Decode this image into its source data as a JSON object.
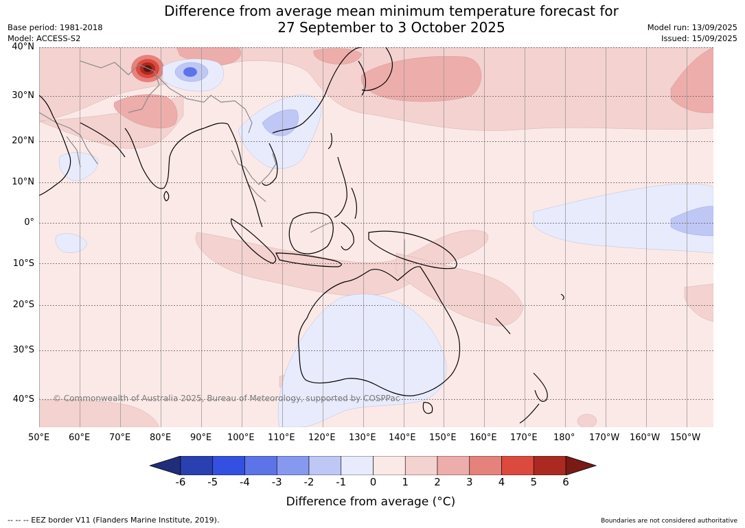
{
  "title": {
    "line1": "Difference from average mean minimum temperature forecast for",
    "line2": "27 September to 3 October 2025"
  },
  "meta_left": {
    "base_period": "Base period: 1981-2018",
    "model": "Model: ACCESS-S2"
  },
  "meta_right": {
    "model_run": "Model run: 13/09/2025",
    "issued": "Issued: 15/09/2025"
  },
  "map": {
    "latitude_labels": [
      "40°N",
      "30°N",
      "20°N",
      "10°N",
      "0°",
      "10°S",
      "20°S",
      "30°S",
      "40°S"
    ],
    "longitude_labels": [
      "50°E",
      "60°E",
      "70°E",
      "80°E",
      "90°E",
      "100°E",
      "110°E",
      "120°E",
      "130°E",
      "140°E",
      "150°E",
      "160°E",
      "170°E",
      "180°",
      "170°W",
      "160°W",
      "150°W"
    ],
    "copyright": "© Commonwealth of Australia 2025, Bureau of Meteorology, supported by COSPPac",
    "colors": {
      "ocean_base": "#fbe9e7",
      "land_outline": "#000000",
      "border_outline": "#888888"
    }
  },
  "colorbar": {
    "ticks": [
      "-6",
      "-5",
      "-4",
      "-3",
      "-2",
      "-1",
      "0",
      "1",
      "2",
      "3",
      "4",
      "5",
      "6"
    ],
    "label": "Difference from average (°C)",
    "low_extend_color": "#1f2d7a",
    "high_extend_color": "#7a1a15",
    "bins": [
      {
        "from": -6,
        "to": -5,
        "color": "#2a3fb0"
      },
      {
        "from": -5,
        "to": -4,
        "color": "#3350e0"
      },
      {
        "from": -4,
        "to": -3,
        "color": "#5c74e8"
      },
      {
        "from": -3,
        "to": -2,
        "color": "#8798ef"
      },
      {
        "from": -2,
        "to": -1,
        "color": "#bfc8f5"
      },
      {
        "from": -1,
        "to": 0,
        "color": "#e8ebfb"
      },
      {
        "from": 0,
        "to": 1,
        "color": "#fbe9e7"
      },
      {
        "from": 1,
        "to": 2,
        "color": "#f4d2d0"
      },
      {
        "from": 2,
        "to": 3,
        "color": "#edadaa"
      },
      {
        "from": 3,
        "to": 4,
        "color": "#e6827c"
      },
      {
        "from": 4,
        "to": 5,
        "color": "#dc4a3e"
      },
      {
        "from": 5,
        "to": 6,
        "color": "#aa2a22"
      }
    ]
  },
  "footer": {
    "eez": "--  --  -- EEZ border V11 (Flanders Marine Institute, 2019).",
    "boundaries": "Boundaries are not considered authoritative"
  }
}
